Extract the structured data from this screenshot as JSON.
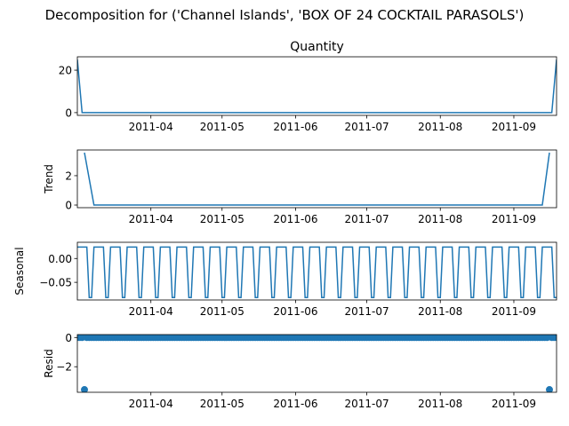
{
  "suptitle": "Decomposition for ('Channel Islands', 'BOX OF 24 COCKTAIL PARASOLS')",
  "colors": {
    "line": "#1f77b4",
    "axis": "#000000",
    "background": "#ffffff"
  },
  "chart_data": [
    {
      "type": "line",
      "title": "Quantity",
      "ylabel": "",
      "x_range": [
        "2011-03-01",
        "2011-09-19"
      ],
      "x_ticks": [
        "2011-04",
        "2011-05",
        "2011-06",
        "2011-07",
        "2011-08",
        "2011-09"
      ],
      "ylim": [
        -1.3,
        26.3
      ],
      "y_ticks": [
        {
          "v": 0,
          "label": "0"
        },
        {
          "v": 20,
          "label": "20"
        }
      ],
      "x": [
        "2011-03-01",
        "2011-03-03",
        "2011-09-17",
        "2011-09-19"
      ],
      "values": [
        25,
        0,
        0,
        25
      ]
    },
    {
      "type": "line",
      "title": "",
      "ylabel": "Trend",
      "x_range": [
        "2011-03-01",
        "2011-09-19"
      ],
      "x_ticks": [
        "2011-04",
        "2011-05",
        "2011-06",
        "2011-07",
        "2011-08",
        "2011-09"
      ],
      "ylim": [
        -0.18,
        3.75
      ],
      "y_ticks": [
        {
          "v": 0,
          "label": "0"
        },
        {
          "v": 2,
          "label": "2"
        }
      ],
      "x": [
        "2011-03-04",
        "2011-03-08",
        "2011-09-13",
        "2011-09-16"
      ],
      "values": [
        3.57,
        0,
        0,
        3.57
      ]
    },
    {
      "type": "line",
      "title": "",
      "ylabel": "Seasonal",
      "x_range": [
        "2011-03-01",
        "2011-09-19"
      ],
      "x_ticks": [
        "2011-04",
        "2011-05",
        "2011-06",
        "2011-07",
        "2011-08",
        "2011-09"
      ],
      "ylim": [
        -0.087,
        0.034
      ],
      "y_ticks": [
        {
          "v": 0,
          "label": "0.00"
        },
        {
          "v": -0.05,
          "label": "−0.05"
        }
      ],
      "period_days": 7,
      "pattern": [
        0.024,
        0.024,
        0.024,
        0.024,
        0.024,
        -0.082,
        -0.082
      ],
      "x": [],
      "values": []
    },
    {
      "type": "scatter",
      "title": "",
      "ylabel": "Resid",
      "x_range": [
        "2011-03-01",
        "2011-09-19"
      ],
      "x_ticks": [
        "2011-04",
        "2011-05",
        "2011-06",
        "2011-07",
        "2011-08",
        "2011-09"
      ],
      "ylim": [
        -3.75,
        0.2
      ],
      "y_ticks": [
        {
          "v": 0,
          "label": "0"
        },
        {
          "v": -2,
          "label": "−2"
        }
      ],
      "baseline": 0,
      "outliers": [
        {
          "x": "2011-03-04",
          "y": -3.57
        },
        {
          "x": "2011-09-16",
          "y": -3.57
        }
      ],
      "x": [],
      "values": []
    }
  ]
}
